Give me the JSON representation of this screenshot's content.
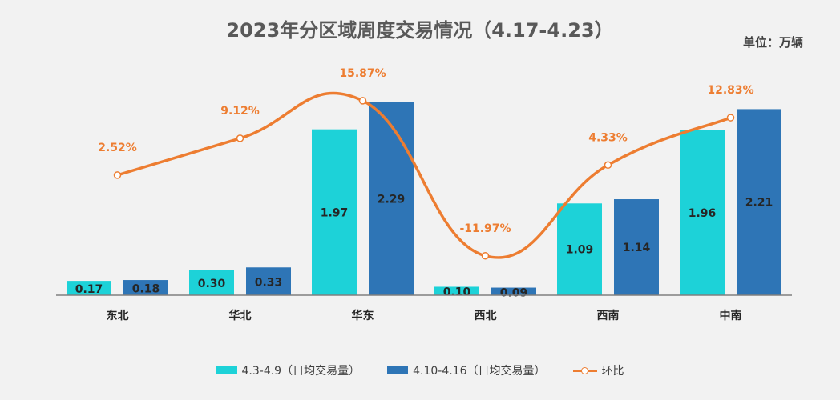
{
  "chart_data": {
    "type": "bar",
    "title": "2023年分区域周度交易情况（4.17-4.23）",
    "unit": "单位：万辆",
    "categories": [
      "东北",
      "华北",
      "华东",
      "西北",
      "西南",
      "中南"
    ],
    "series": [
      {
        "name": "4.3-4.9（日均交易量）",
        "type": "bar",
        "color": "#1dd2d8",
        "values": [
          0.17,
          0.3,
          1.97,
          0.1,
          1.09,
          1.96
        ],
        "labels": [
          "0.17",
          "0.30",
          "1.97",
          "0.10",
          "1.09",
          "1.96"
        ]
      },
      {
        "name": "4.10-4.16（日均交易量）",
        "type": "bar",
        "color": "#2e75b6",
        "values": [
          0.18,
          0.33,
          2.29,
          0.09,
          1.14,
          2.21
        ],
        "labels": [
          "0.18",
          "0.33",
          "2.29",
          "0.09",
          "1.14",
          "2.21"
        ]
      },
      {
        "name": "环比",
        "type": "line",
        "color": "#ed7d31",
        "values": [
          2.52,
          9.12,
          15.87,
          -11.97,
          4.33,
          12.83
        ],
        "labels": [
          "2.52%",
          "9.12%",
          "15.87%",
          "-11.97%",
          "4.33%",
          "12.83%"
        ]
      }
    ],
    "ylim": [
      0,
      2.29
    ],
    "line_ylim": [
      -12,
      16
    ]
  }
}
